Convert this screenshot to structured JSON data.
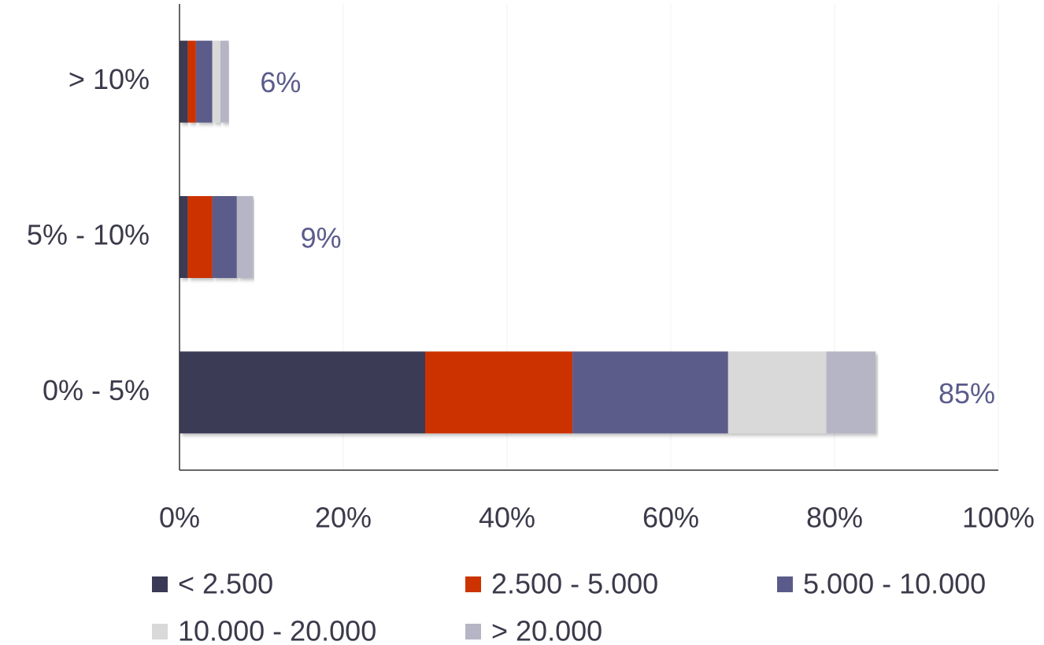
{
  "chart_data": {
    "type": "stacked-barh",
    "categories": [
      "0% - 5%",
      "5% - 10%",
      "> 10%"
    ],
    "series": [
      {
        "name": "< 2.500",
        "color": "#3a3a56",
        "values": [
          30,
          1,
          1
        ]
      },
      {
        "name": "2.500 - 5.000",
        "color": "#cc3300",
        "values": [
          18,
          3,
          1
        ]
      },
      {
        "name": "5.000 - 10.000",
        "color": "#5b5b8b",
        "values": [
          19,
          3,
          2
        ]
      },
      {
        "name": "10.000 - 20.000",
        "color": "#d9d9d9",
        "values": [
          12,
          0,
          1
        ]
      },
      {
        "name": "> 20.000",
        "color": "#b5b5c5",
        "values": [
          6,
          2,
          1
        ]
      }
    ],
    "totals": [
      85,
      9,
      6
    ],
    "total_labels": [
      "85%",
      "9%",
      "6%"
    ],
    "xlim": [
      0,
      100
    ],
    "xticks": [
      {
        "value": 0,
        "label": "0%"
      },
      {
        "value": 20,
        "label": "20%"
      },
      {
        "value": 40,
        "label": "40%"
      },
      {
        "value": 60,
        "label": "60%"
      },
      {
        "value": 80,
        "label": "80%"
      },
      {
        "value": 100,
        "label": "100%"
      }
    ],
    "grid": true
  }
}
